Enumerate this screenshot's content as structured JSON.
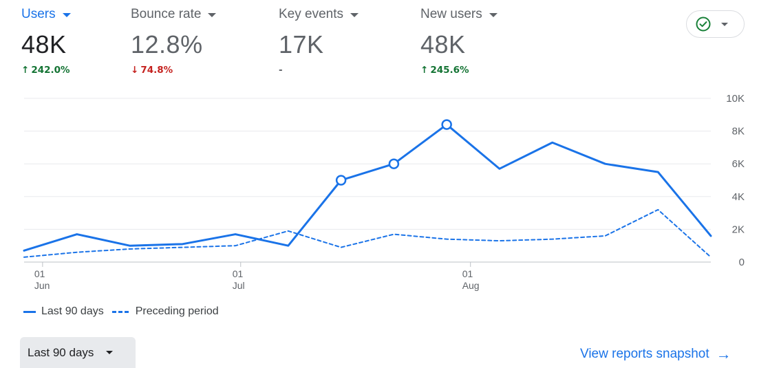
{
  "metrics": [
    {
      "label": "Users",
      "value": "48K",
      "delta": "242.0%",
      "direction": "up"
    },
    {
      "label": "Bounce rate",
      "value": "12.8%",
      "delta": "74.8%",
      "direction": "down"
    },
    {
      "label": "Key events",
      "value": "17K",
      "delta": "-",
      "direction": "none"
    },
    {
      "label": "New users",
      "value": "48K",
      "delta": "245.6%",
      "direction": "up"
    }
  ],
  "colors": {
    "accent": "#1a73e8",
    "positive": "#137333",
    "negative": "#c5221f",
    "status_ok": "#188038"
  },
  "icons": {
    "status": "check-circle-icon",
    "dropdown": "caret-down-icon",
    "link_arrow": "arrow-right-icon"
  },
  "chart_data": {
    "type": "line",
    "x_index": [
      0,
      1,
      2,
      3,
      4,
      5,
      6,
      7,
      8,
      9,
      10,
      11,
      12,
      13
    ],
    "x_ticks": [
      {
        "pos": 0.35,
        "day": "01",
        "month": "Jun"
      },
      {
        "pos": 4.1,
        "day": "01",
        "month": "Jul"
      },
      {
        "pos": 8.45,
        "day": "01",
        "month": "Aug"
      }
    ],
    "series": [
      {
        "name": "Last 90 days",
        "style": "solid",
        "values": [
          700,
          1700,
          1000,
          1100,
          1700,
          1000,
          5000,
          6000,
          8400,
          5700,
          7300,
          6000,
          5500,
          1600
        ],
        "markers": [
          6,
          7,
          8
        ]
      },
      {
        "name": "Preceding period",
        "style": "dashed",
        "values": [
          300,
          600,
          800,
          900,
          1000,
          1900,
          900,
          1700,
          1400,
          1300,
          1400,
          1600,
          3200,
          300
        ]
      }
    ],
    "ylim": [
      0,
      10000
    ],
    "y_ticks": [
      "0",
      "2K",
      "4K",
      "6K",
      "8K",
      "10K"
    ],
    "y_tick_values": [
      0,
      2000,
      4000,
      6000,
      8000,
      10000
    ],
    "grid": true,
    "legend_position": "bottom-left"
  },
  "footer": {
    "range_label": "Last 90 days",
    "view_link": "View reports snapshot"
  }
}
